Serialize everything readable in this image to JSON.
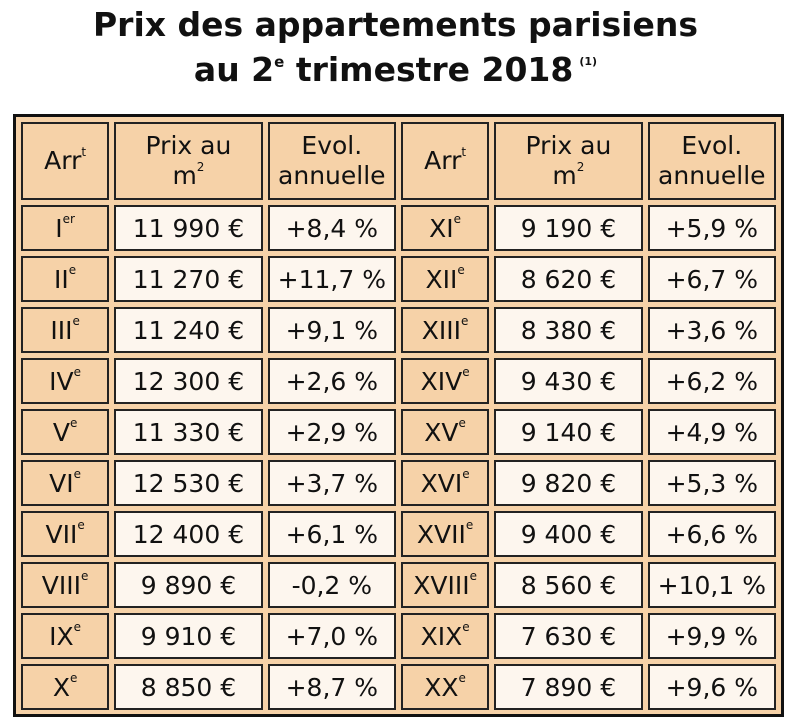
{
  "title": {
    "line1": "Prix des appartements parisiens",
    "line2_before": "au 2",
    "line2_sup": "e",
    "line2_after": " trimestre 2018",
    "note": "(1)"
  },
  "headers": {
    "arr_main": "Arr",
    "arr_sup": "t",
    "prix_line1": "Prix au",
    "prix_line2_main": "m",
    "prix_line2_sup": "2",
    "evol_line1": "Evol.",
    "evol_line2": "annuelle"
  },
  "rows": [
    {
      "arr": "I",
      "arr_sup": "er",
      "prix": "11 990 €",
      "evol": "+8,4 %",
      "arr2": "XI",
      "arr2_sup": "e",
      "prix2": "9 190 €",
      "evol2": "+5,9 %"
    },
    {
      "arr": "II",
      "arr_sup": "e",
      "prix": "11 270 €",
      "evol": "+11,7 %",
      "arr2": "XII",
      "arr2_sup": "e",
      "prix2": "8 620 €",
      "evol2": "+6,7 %"
    },
    {
      "arr": "III",
      "arr_sup": "e",
      "prix": "11 240 €",
      "evol": "+9,1 %",
      "arr2": "XIII",
      "arr2_sup": "e",
      "prix2": "8 380 €",
      "evol2": "+3,6 %"
    },
    {
      "arr": "IV",
      "arr_sup": "e",
      "prix": "12 300 €",
      "evol": "+2,6 %",
      "arr2": "XIV",
      "arr2_sup": "e",
      "prix2": "9 430 €",
      "evol2": "+6,2 %"
    },
    {
      "arr": "V",
      "arr_sup": "e",
      "prix": "11 330 €",
      "evol": "+2,9 %",
      "arr2": "XV",
      "arr2_sup": "e",
      "prix2": "9 140 €",
      "evol2": "+4,9 %"
    },
    {
      "arr": "VI",
      "arr_sup": "e",
      "prix": "12 530 €",
      "evol": "+3,7 %",
      "arr2": "XVI",
      "arr2_sup": "e",
      "prix2": "9 820 €",
      "evol2": "+5,3 %"
    },
    {
      "arr": "VII",
      "arr_sup": "e",
      "prix": "12 400 €",
      "evol": "+6,1 %",
      "arr2": "XVII",
      "arr2_sup": "e",
      "prix2": "9 400 €",
      "evol2": "+6,6 %"
    },
    {
      "arr": "VIII",
      "arr_sup": "e",
      "prix": "9 890 €",
      "evol": "-0,2 %",
      "arr2": "XVIII",
      "arr2_sup": "e",
      "prix2": "8 560 €",
      "evol2": "+10,1 %"
    },
    {
      "arr": "IX",
      "arr_sup": "e",
      "prix": "9 910 €",
      "evol": "+7,0 %",
      "arr2": "XIX",
      "arr2_sup": "e",
      "prix2": "7 630 €",
      "evol2": "+9,9 %"
    },
    {
      "arr": "X",
      "arr_sup": "e",
      "prix": "8 850 €",
      "evol": "+8,7 %",
      "arr2": "XX",
      "arr2_sup": "e",
      "prix2": "7 890 €",
      "evol2": "+9,6 %"
    }
  ],
  "colors": {
    "header_bg": "#f6d2a8",
    "cell_bg": "#fdf6ee",
    "border": "#111111"
  }
}
